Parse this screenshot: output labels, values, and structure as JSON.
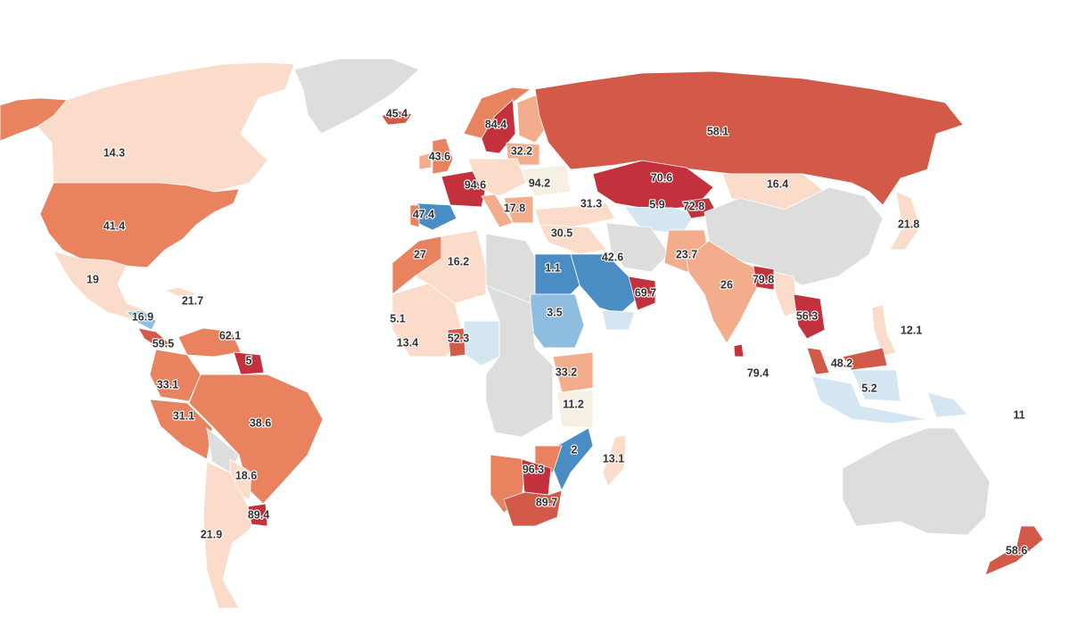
{
  "colors": {
    "no_data": "#dddddd",
    "v1": "#4a8dc4",
    "v2": "#8ebde0",
    "v3": "#d3e6f2",
    "v4": "#f6efe4",
    "v5": "#fbdcca",
    "v6": "#f3ad8c",
    "v7": "#e8825f",
    "v8": "#d35a48",
    "v9": "#c3313d"
  },
  "countries": [
    {
      "id": "canada",
      "value": "14.3",
      "color": "v5"
    },
    {
      "id": "alaska",
      "value": "",
      "color": "v7"
    },
    {
      "id": "greenland",
      "value": "",
      "color": "no_data"
    },
    {
      "id": "iceland",
      "value": "45.4",
      "color": "v8"
    },
    {
      "id": "usa",
      "value": "41.4",
      "color": "v7"
    },
    {
      "id": "mexico",
      "value": "19",
      "color": "v5"
    },
    {
      "id": "cuba",
      "value": "21.7",
      "color": "v5"
    },
    {
      "id": "central-america",
      "value": "16.9",
      "color": "v2"
    },
    {
      "id": "panama",
      "value": "59.5",
      "color": "v8"
    },
    {
      "id": "venezuela",
      "value": "62.1",
      "color": "v7"
    },
    {
      "id": "guiana",
      "value": "5",
      "color": "v9"
    },
    {
      "id": "colombia",
      "value": "33.1",
      "color": "v7"
    },
    {
      "id": "peru",
      "value": "31.1",
      "color": "v7"
    },
    {
      "id": "brazil",
      "value": "38.6",
      "color": "v7"
    },
    {
      "id": "bolivia",
      "value": "",
      "color": "no_data"
    },
    {
      "id": "paraguay",
      "value": "18.6",
      "color": "v5"
    },
    {
      "id": "uruguay",
      "value": "89.4",
      "color": "v9"
    },
    {
      "id": "argentina",
      "value": "21.9",
      "color": "v5"
    },
    {
      "id": "uk",
      "value": "43.6",
      "color": "v7"
    },
    {
      "id": "ireland",
      "value": "",
      "color": "v6"
    },
    {
      "id": "norway",
      "value": "",
      "color": "v7"
    },
    {
      "id": "sweden",
      "value": "84.4",
      "color": "v9"
    },
    {
      "id": "finland",
      "value": "",
      "color": "v6"
    },
    {
      "id": "baltics",
      "value": "32.2",
      "color": "v6"
    },
    {
      "id": "france",
      "value": "94.6",
      "color": "v9"
    },
    {
      "id": "central-europe",
      "value": "",
      "color": "v5"
    },
    {
      "id": "ukraine",
      "value": "94.2",
      "color": "v4"
    },
    {
      "id": "spain",
      "value": "47.4",
      "color": "v1"
    },
    {
      "id": "portugal",
      "value": "",
      "color": "v7"
    },
    {
      "id": "italy",
      "value": "",
      "color": "v6"
    },
    {
      "id": "greece",
      "value": "17.8",
      "color": "v6"
    },
    {
      "id": "turkey",
      "value": "31.3",
      "color": "v5"
    },
    {
      "id": "russia",
      "value": "58.1",
      "color": "v8"
    },
    {
      "id": "kazakhstan",
      "value": "70.6",
      "color": "v9"
    },
    {
      "id": "central-asia",
      "value": "5.9",
      "color": "v3"
    },
    {
      "id": "kyrgyzstan",
      "value": "72.8",
      "color": "v9"
    },
    {
      "id": "mongolia",
      "value": "16.4",
      "color": "v5"
    },
    {
      "id": "china",
      "value": "",
      "color": "no_data"
    },
    {
      "id": "japan",
      "value": "21.8",
      "color": "v5"
    },
    {
      "id": "morocco",
      "value": "27",
      "color": "v7"
    },
    {
      "id": "algeria",
      "value": "16.2",
      "color": "v5"
    },
    {
      "id": "libya",
      "value": "",
      "color": "no_data"
    },
    {
      "id": "egypt",
      "value": "1.1",
      "color": "v1"
    },
    {
      "id": "saudi",
      "value": "42.6",
      "color": "v1"
    },
    {
      "id": "iraq-syria",
      "value": "30.5",
      "color": "v5"
    },
    {
      "id": "iran",
      "value": "",
      "color": "no_data"
    },
    {
      "id": "oman",
      "value": "69.7",
      "color": "v9"
    },
    {
      "id": "yemen",
      "value": "",
      "color": "v3"
    },
    {
      "id": "pakistan",
      "value": "23.7",
      "color": "v6"
    },
    {
      "id": "india",
      "value": "26",
      "color": "v6"
    },
    {
      "id": "bangladesh",
      "value": "79.8",
      "color": "v9"
    },
    {
      "id": "myanmar",
      "value": "",
      "color": "v5"
    },
    {
      "id": "thailand",
      "value": "56.3",
      "color": "v9"
    },
    {
      "id": "sri-lanka",
      "value": "79.4",
      "color": "v9"
    },
    {
      "id": "philippines",
      "value": "12.1",
      "color": "v5"
    },
    {
      "id": "malaysia",
      "value": "48.2",
      "color": "v8"
    },
    {
      "id": "indonesia",
      "value": "5.2",
      "color": "v3"
    },
    {
      "id": "png",
      "value": "",
      "color": "v3"
    },
    {
      "id": "australia",
      "value": "",
      "color": "no_data"
    },
    {
      "id": "new-zealand",
      "value": "58.6",
      "color": "v8"
    },
    {
      "id": "sudan",
      "value": "3.5",
      "color": "v2"
    },
    {
      "id": "west-africa",
      "value": "13.4",
      "color": "v5"
    },
    {
      "id": "senegal",
      "value": "5.1",
      "color": "v3"
    },
    {
      "id": "ghana",
      "value": "52.3",
      "color": "v8"
    },
    {
      "id": "nigeria",
      "value": "",
      "color": "v3"
    },
    {
      "id": "central-africa",
      "value": "",
      "color": "no_data"
    },
    {
      "id": "kenya",
      "value": "33.2",
      "color": "v6"
    },
    {
      "id": "tanzania",
      "value": "11.2",
      "color": "v4"
    },
    {
      "id": "mozambique",
      "value": "2",
      "color": "v1"
    },
    {
      "id": "zimbabwe",
      "value": "",
      "color": "v7"
    },
    {
      "id": "namibia",
      "value": "",
      "color": "v7"
    },
    {
      "id": "botswana",
      "value": "96.3",
      "color": "v9"
    },
    {
      "id": "south-africa",
      "value": "89.7",
      "color": "v8"
    },
    {
      "id": "madagascar",
      "value": "13.1",
      "color": "v5"
    }
  ],
  "extra_labels": [
    {
      "id": "pacific-islands",
      "value": "11"
    }
  ]
}
